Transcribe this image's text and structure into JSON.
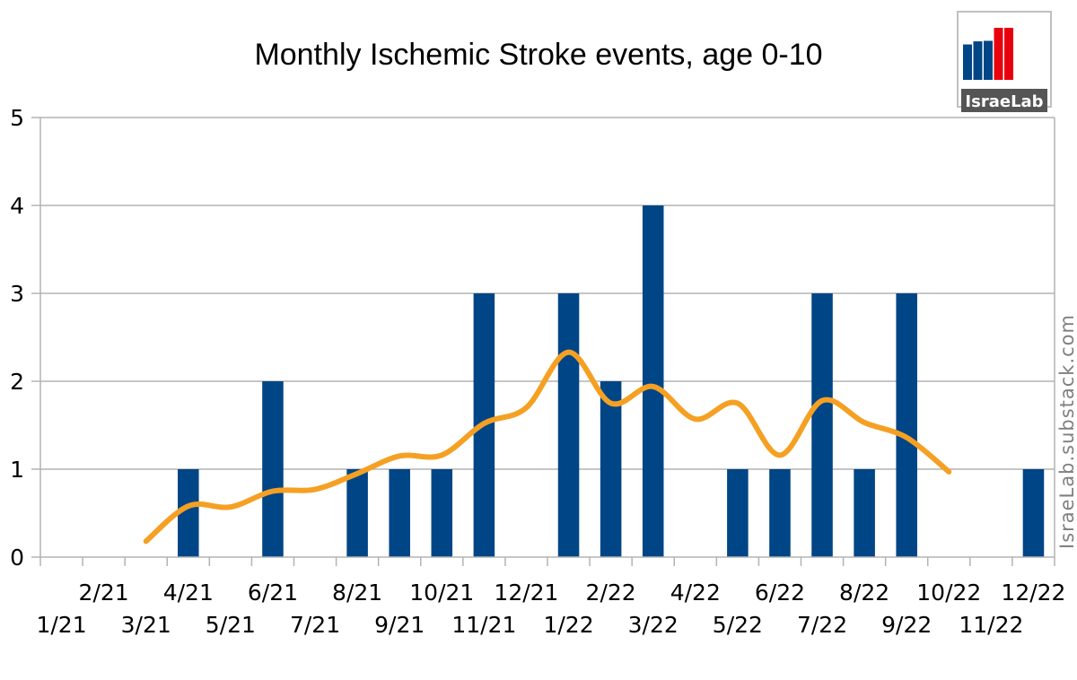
{
  "chart_data": {
    "type": "bar",
    "title": "Monthly Ischemic Stroke events, age 0-10",
    "xlabel": "",
    "ylabel": "",
    "ylim": [
      0,
      5
    ],
    "yticks": [
      "0",
      "1",
      "2",
      "3",
      "4",
      "5"
    ],
    "categories": [
      "1/21",
      "2/21",
      "3/21",
      "4/21",
      "5/21",
      "6/21",
      "7/21",
      "8/21",
      "9/21",
      "10/21",
      "11/21",
      "12/21",
      "1/22",
      "2/22",
      "3/22",
      "4/22",
      "5/22",
      "6/22",
      "7/22",
      "8/22",
      "9/22",
      "10/22",
      "11/22",
      "12/22"
    ],
    "series": [
      {
        "type": "bar",
        "color": "#004586",
        "values": [
          0,
          0,
          0,
          1,
          0,
          2,
          0,
          1,
          1,
          1,
          3,
          0,
          3,
          2,
          4,
          0,
          1,
          1,
          3,
          1,
          3,
          0,
          0,
          1
        ]
      },
      {
        "type": "smoothed-line",
        "color": "#F5A023",
        "x": [
          "3/21",
          "4/21",
          "5/21",
          "6/21",
          "7/21",
          "8/21",
          "9/21",
          "10/21",
          "11/21",
          "12/21",
          "1/22",
          "2/22",
          "3/22",
          "4/22",
          "5/22",
          "6/22",
          "7/22",
          "8/22",
          "9/22",
          "10/22"
        ],
        "values": [
          0.18,
          0.58,
          0.57,
          0.75,
          0.77,
          0.95,
          1.15,
          1.16,
          1.52,
          1.7,
          2.33,
          1.75,
          1.94,
          1.57,
          1.75,
          1.16,
          1.78,
          1.53,
          1.36,
          0.97
        ]
      }
    ],
    "grid": true,
    "legend": "none"
  },
  "logo": {
    "text": "IsraeLab",
    "bar_colors": [
      "#004586",
      "#004586",
      "#004586",
      "#e8000d",
      "#e8000d"
    ],
    "bar_levels": [
      0.68,
      0.74,
      0.75,
      1.0,
      1.0
    ]
  },
  "watermark": "IsraeLab.substack.com"
}
